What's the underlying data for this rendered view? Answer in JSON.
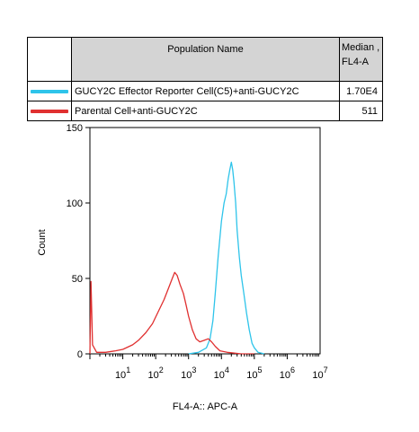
{
  "legend": {
    "header": {
      "name": "Population Name",
      "median_line1": "Median ,",
      "median_line2": "FL4-A"
    },
    "rows": [
      {
        "name": "GUCY2C Effector Reporter Cell(C5)+anti-GUCY2C",
        "median": "1.70E4",
        "color": "#2ec4ea"
      },
      {
        "name": "Parental Cell+anti-GUCY2C",
        "median": "511",
        "color": "#e03030"
      }
    ]
  },
  "chart_data": {
    "type": "line",
    "xlabel": "FL4-A:: APC-A",
    "ylabel": "Count",
    "x_scale": "log",
    "xlim": [
      1,
      10000000
    ],
    "ylim": [
      0,
      150
    ],
    "y_ticks": [
      "0",
      "50",
      "100",
      "150"
    ],
    "x_ticks": [
      {
        "base": "10",
        "exp": "1"
      },
      {
        "base": "10",
        "exp": "2"
      },
      {
        "base": "10",
        "exp": "3"
      },
      {
        "base": "10",
        "exp": "4"
      },
      {
        "base": "10",
        "exp": "5"
      },
      {
        "base": "10",
        "exp": "6"
      },
      {
        "base": "10",
        "exp": "7"
      }
    ],
    "series": [
      {
        "name": "GUCY2C Effector Reporter Cell(C5)+anti-GUCY2C",
        "color": "#2ec4ea",
        "points": [
          [
            1000,
            0
          ],
          [
            2000,
            1
          ],
          [
            3500,
            4
          ],
          [
            4500,
            10
          ],
          [
            5500,
            22
          ],
          [
            6500,
            40
          ],
          [
            8000,
            65
          ],
          [
            10000,
            88
          ],
          [
            12000,
            100
          ],
          [
            14000,
            106
          ],
          [
            16000,
            116
          ],
          [
            18000,
            122
          ],
          [
            20000,
            127
          ],
          [
            22000,
            122
          ],
          [
            24000,
            114
          ],
          [
            27000,
            100
          ],
          [
            30000,
            82
          ],
          [
            35000,
            64
          ],
          [
            40000,
            52
          ],
          [
            48000,
            40
          ],
          [
            58000,
            27
          ],
          [
            70000,
            16
          ],
          [
            85000,
            7
          ],
          [
            100000,
            4
          ],
          [
            130000,
            1
          ],
          [
            200000,
            0
          ]
        ]
      },
      {
        "name": "Parental Cell+anti-GUCY2C",
        "color": "#e03030",
        "points": [
          [
            1,
            0
          ],
          [
            1.08,
            48
          ],
          [
            1.2,
            6
          ],
          [
            1.6,
            1
          ],
          [
            3,
            1
          ],
          [
            6,
            2
          ],
          [
            10,
            3
          ],
          [
            20,
            6
          ],
          [
            30,
            9
          ],
          [
            50,
            14
          ],
          [
            80,
            20
          ],
          [
            120,
            28
          ],
          [
            180,
            36
          ],
          [
            250,
            44
          ],
          [
            320,
            50
          ],
          [
            380,
            54
          ],
          [
            450,
            52
          ],
          [
            550,
            46
          ],
          [
            700,
            40
          ],
          [
            850,
            32
          ],
          [
            1000,
            25
          ],
          [
            1300,
            16
          ],
          [
            1700,
            10
          ],
          [
            2200,
            8
          ],
          [
            3000,
            9
          ],
          [
            4000,
            10
          ],
          [
            5000,
            8
          ],
          [
            6500,
            5
          ],
          [
            9000,
            2
          ],
          [
            15000,
            1
          ],
          [
            40000,
            0
          ],
          [
            100000,
            0
          ]
        ]
      }
    ]
  }
}
